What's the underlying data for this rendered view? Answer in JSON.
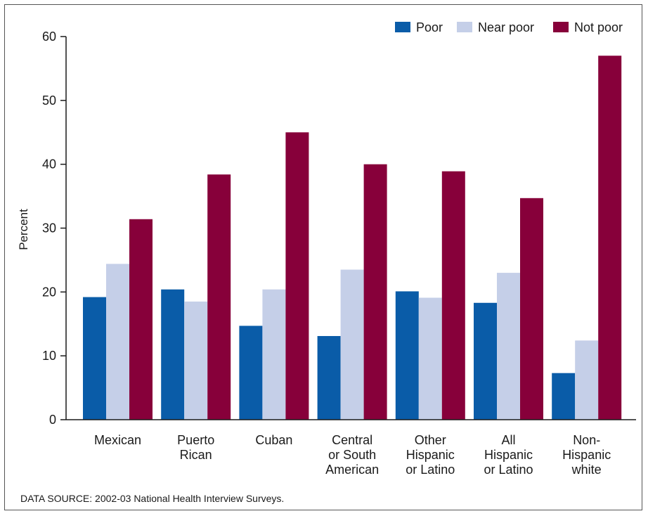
{
  "chart_data": {
    "type": "bar",
    "ylabel": "Percent",
    "ylim": [
      0,
      60
    ],
    "yticks": [
      "0",
      "10",
      "20",
      "30",
      "40",
      "50",
      "60"
    ],
    "categories": [
      [
        "Mexican"
      ],
      [
        "Puerto",
        "Rican"
      ],
      [
        "Cuban"
      ],
      [
        "Central",
        "or South",
        "American"
      ],
      [
        "Other",
        "Hispanic",
        "or Latino"
      ],
      [
        "All",
        "Hispanic",
        "or Latino"
      ],
      [
        "Non-",
        "Hispanic",
        "white"
      ]
    ],
    "series": [
      {
        "name": "Poor",
        "color": "#0a5ca8",
        "values": [
          19.2,
          20.4,
          14.7,
          13.1,
          20.1,
          18.3,
          7.3
        ]
      },
      {
        "name": "Near poor",
        "color": "#c5cfe8",
        "values": [
          24.4,
          18.5,
          20.4,
          23.5,
          19.1,
          23.0,
          12.4
        ]
      },
      {
        "name": "Not poor",
        "color": "#87003a",
        "values": [
          31.4,
          38.4,
          45.0,
          40.0,
          38.9,
          34.7,
          57.0
        ]
      }
    ],
    "legend": "top-right",
    "grid": false
  },
  "footer": {
    "source": "DATA SOURCE: 2002-03 National Health Interview Surveys."
  }
}
